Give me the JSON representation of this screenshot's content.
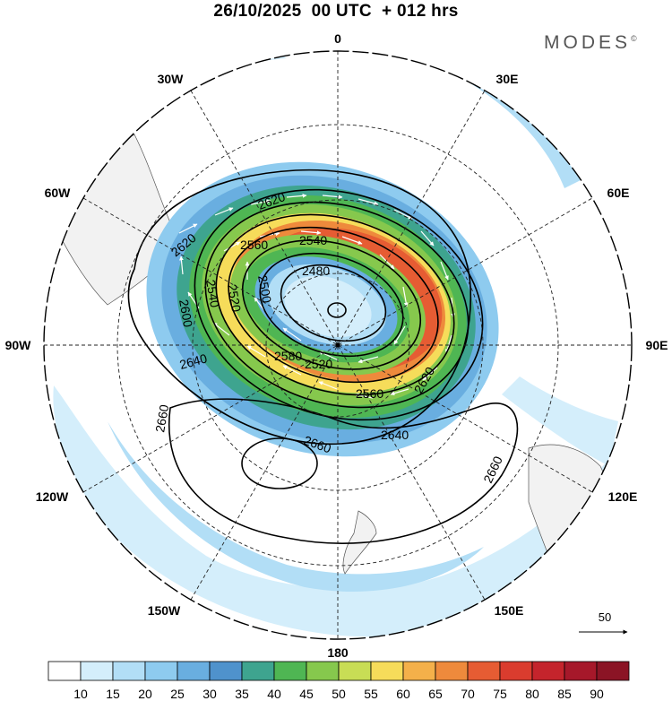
{
  "title": "26/10/2025  00 UTC  + 012 hrs",
  "brand": "MODES",
  "brand_mark": "©",
  "map": {
    "projection": "south-polar-stereographic",
    "longitude_labels": {
      "top": "0",
      "bottom": "180",
      "left": "90W",
      "right": "90E",
      "upper_left_1": "30W",
      "upper_left_2": "60W",
      "upper_right_1": "30E",
      "upper_right_2": "60E",
      "lower_left_1": "120W",
      "lower_left_2": "150W",
      "lower_right_1": "120E",
      "lower_right_2": "150E"
    },
    "contour_labels": [
      "2480",
      "2500",
      "2520",
      "2520",
      "2540",
      "2540",
      "2560",
      "2560",
      "2580",
      "2600",
      "2620",
      "2620",
      "2620",
      "2640",
      "2640",
      "2660",
      "2660",
      "2660"
    ],
    "wind_speed_unit_reference": "50",
    "colors": {
      "land": "#f2f2f2",
      "jet_core": "#d93a2a",
      "contour": "#000000"
    }
  },
  "colorbar": {
    "ticks": [
      "10",
      "15",
      "20",
      "25",
      "30",
      "35",
      "40",
      "45",
      "50",
      "55",
      "60",
      "65",
      "70",
      "75",
      "80",
      "85",
      "90"
    ],
    "colors": [
      "#ffffff",
      "#d4eefb",
      "#b2def6",
      "#8ecbef",
      "#69aee0",
      "#4f92cc",
      "#3ea48f",
      "#4fb653",
      "#86c84d",
      "#c8dd55",
      "#f6dc5a",
      "#f4b04a",
      "#ee8a3c",
      "#e65c33",
      "#da3c2e",
      "#c4242c",
      "#a6182a",
      "#8b1425"
    ]
  }
}
